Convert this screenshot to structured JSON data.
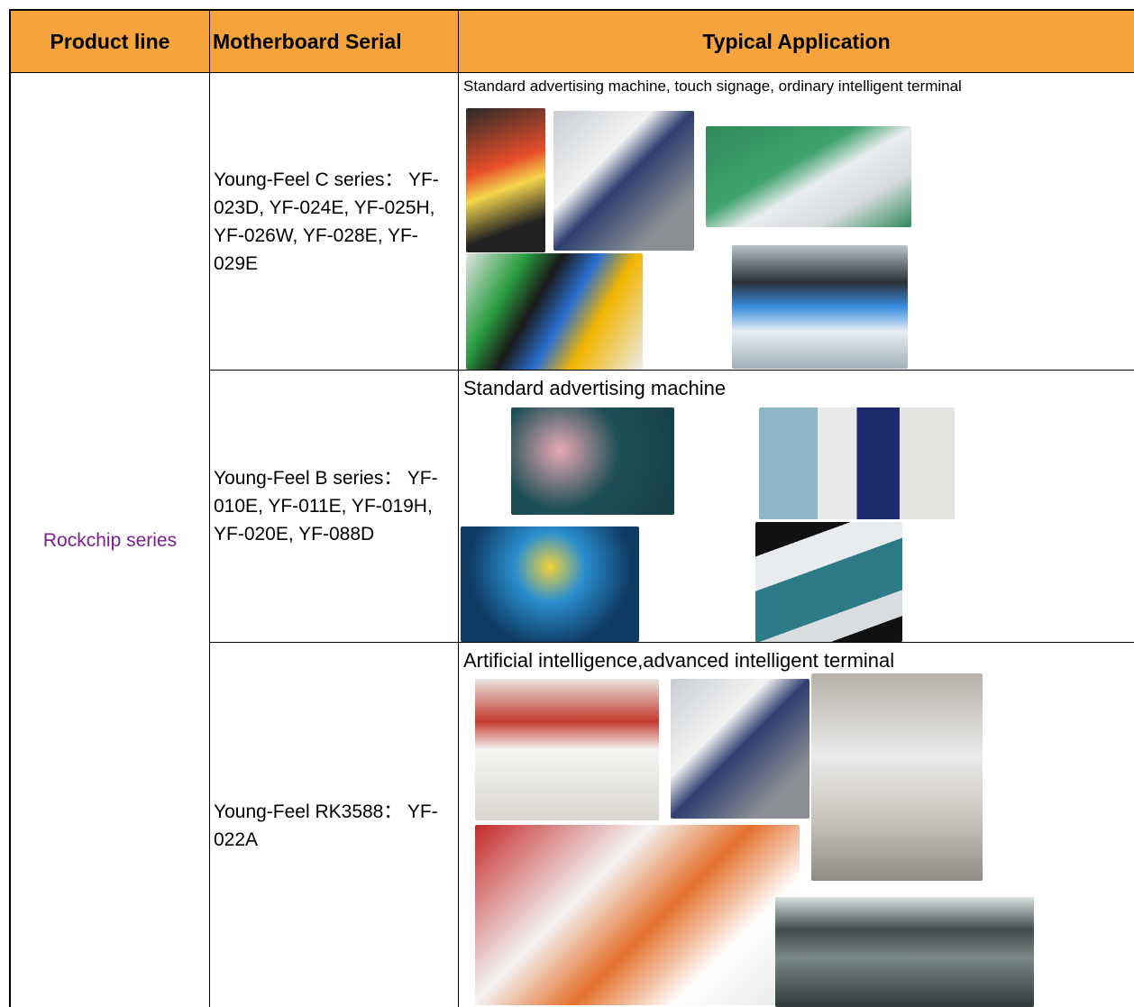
{
  "table": {
    "headers": [
      "Product line",
      "Motherboard Serial",
      "Typical Application"
    ],
    "product_line": "Rockchip series",
    "rows": [
      {
        "serial": "Young-Feel C series： YF-023D, YF-024E, YF-025H, YF-026W, YF-028E, YF-029E",
        "application": "Standard advertising machine, touch signage, ordinary intelligent terminal"
      },
      {
        "serial": "Young-Feel B series： YF-010E, YF-011E, YF-019H, YF-020E, YF-088D",
        "application": "Standard advertising machine"
      },
      {
        "serial": "Young-Feel RK3588： YF-022A",
        "application": "Artificial intelligence,advanced intelligent terminal"
      }
    ]
  }
}
